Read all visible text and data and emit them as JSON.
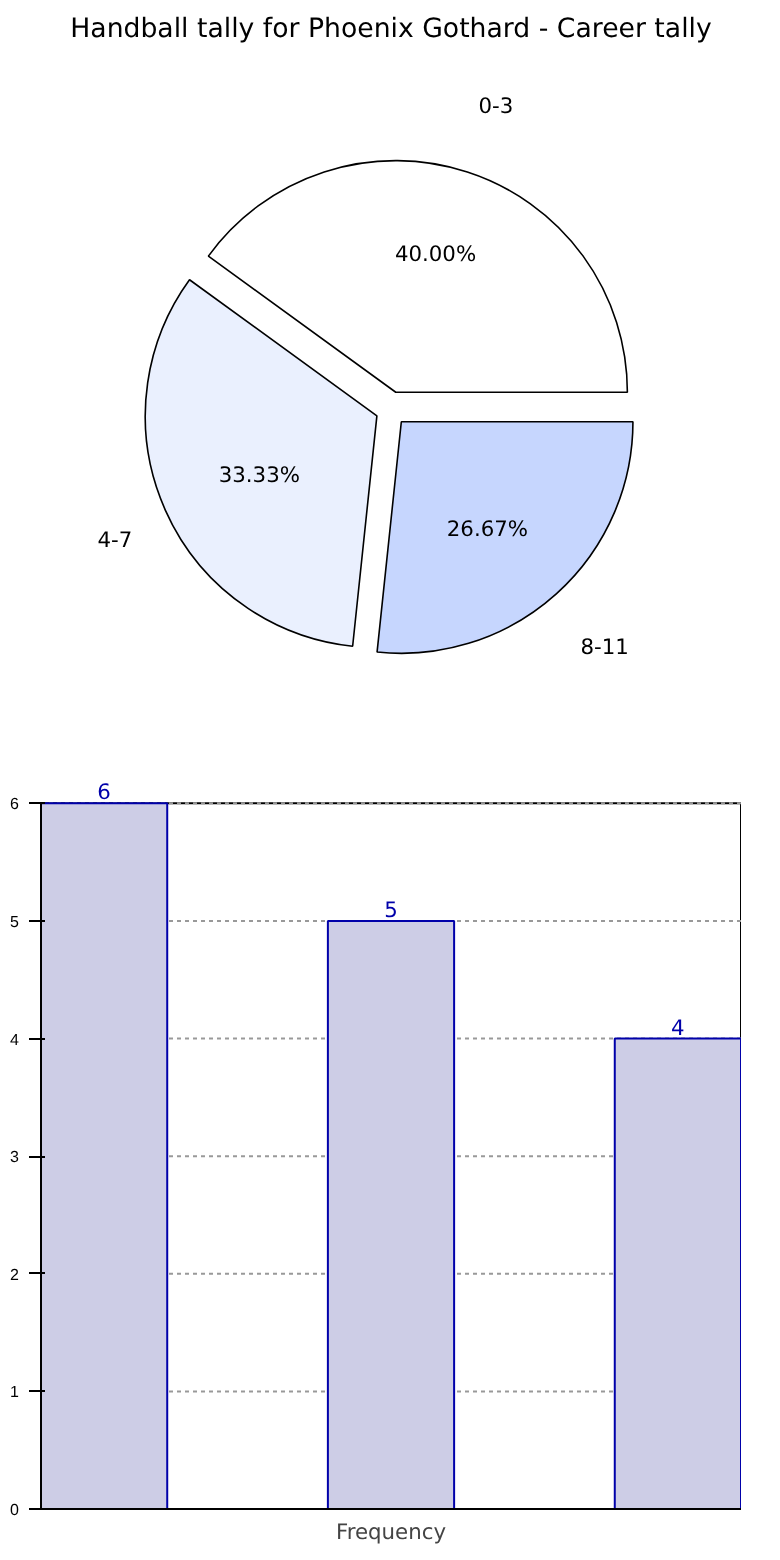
{
  "chart_data": [
    {
      "type": "pie",
      "title": "Handball tally for Phoenix Gothard - Career tally",
      "categories": [
        "0-3",
        "4-7",
        "8-11"
      ],
      "values": [
        40,
        33.33,
        26.67
      ],
      "colors": [
        "#ffffff",
        "#eaf0fe",
        "#c6d6fe"
      ],
      "value_labels": [
        "40.00%",
        "33.33%",
        "26.67%"
      ]
    },
    {
      "type": "bar",
      "categories": [
        null,
        null,
        null
      ],
      "values": [
        6,
        5,
        4
      ],
      "color": "#cdcde6",
      "xlabel": "Frequency",
      "ylim": [
        0,
        6
      ],
      "yticks": [
        0,
        1,
        2,
        3,
        4,
        5,
        6
      ],
      "grid": "y",
      "data_labels": true,
      "tick_labels": "y"
    }
  ]
}
